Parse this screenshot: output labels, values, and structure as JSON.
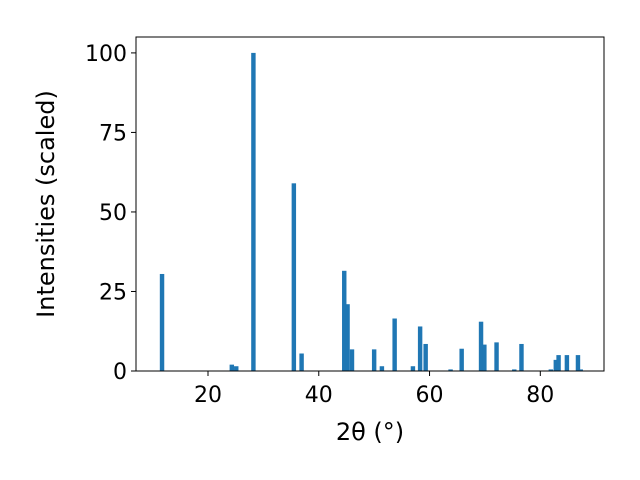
{
  "chart_data": {
    "type": "bar",
    "xlabel": "2θ (°)",
    "ylabel": "Intensities (scaled)",
    "xlim": [
      7.0,
      91.5
    ],
    "ylim": [
      0,
      105
    ],
    "xticks": [
      20,
      40,
      60,
      80
    ],
    "yticks": [
      0,
      25,
      50,
      75,
      100
    ],
    "bar_width_deg": 0.8,
    "bar_color": "#1f77b4",
    "x": [
      11.7,
      24.3,
      25.1,
      28.2,
      35.5,
      36.9,
      44.6,
      45.2,
      46.0,
      50.0,
      51.4,
      53.7,
      57.0,
      58.3,
      59.3,
      63.8,
      65.8,
      69.3,
      69.9,
      72.1,
      75.3,
      76.6,
      81.9,
      82.8,
      83.3,
      84.8,
      86.8,
      87.3
    ],
    "values": [
      30.5,
      2.0,
      1.5,
      100.0,
      59.0,
      5.5,
      31.5,
      21.0,
      6.8,
      6.8,
      1.5,
      16.5,
      1.5,
      14.0,
      8.5,
      0.5,
      7.0,
      15.5,
      8.3,
      9.0,
      0.5,
      8.5,
      0.5,
      3.5,
      5.0,
      5.0,
      5.0,
      0.5
    ]
  }
}
